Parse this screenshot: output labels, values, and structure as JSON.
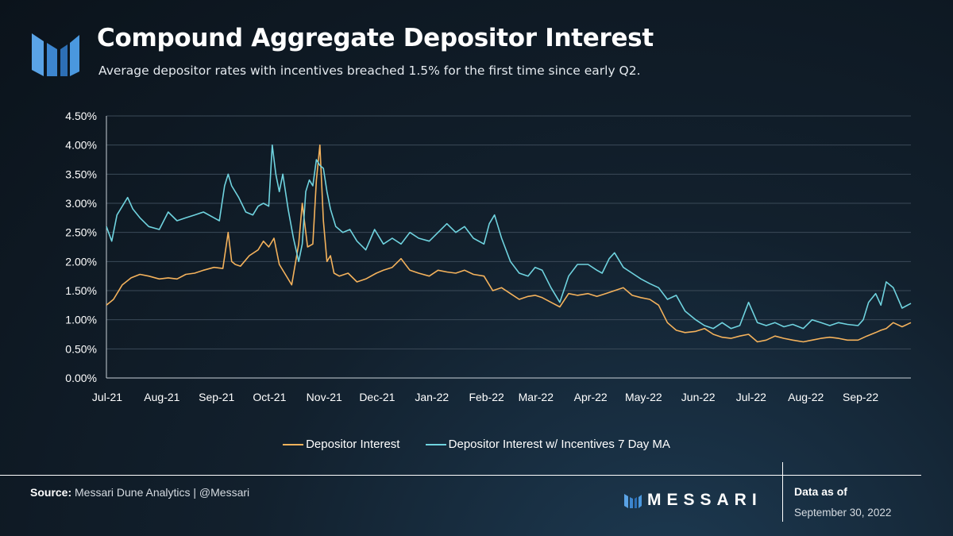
{
  "header": {
    "title": "Compound Aggregate Depositor Interest",
    "subtitle": "Average depositor rates with incentives breached 1.5% for the first time since early Q2."
  },
  "colors": {
    "series1": "#f4b25c",
    "series2": "#6fd3df",
    "grid": "#3b4a58",
    "accent": "#3d8fd6"
  },
  "chart_data": {
    "type": "line",
    "title": "Compound Aggregate Depositor Interest",
    "xlabel": "",
    "ylabel": "",
    "ylim": [
      0,
      4.5
    ],
    "y_ticks": [
      "0.00%",
      "0.50%",
      "1.00%",
      "1.50%",
      "2.00%",
      "2.50%",
      "3.00%",
      "3.50%",
      "4.00%",
      "4.50%"
    ],
    "x_ticks": [
      "Jul-21",
      "Aug-21",
      "Sep-21",
      "Oct-21",
      "Nov-21",
      "Dec-21",
      "Jan-22",
      "Feb-22",
      "Mar-22",
      "Apr-22",
      "May-22",
      "Jun-22",
      "Jul-22",
      "Aug-22",
      "Sep-22"
    ],
    "x_range": [
      "2021-07-01",
      "2022-09-30"
    ],
    "series": [
      {
        "name": "Depositor Interest",
        "color": "#f4b25c",
        "x": [
          "2021-07-01",
          "2021-07-05",
          "2021-07-10",
          "2021-07-15",
          "2021-07-20",
          "2021-07-25",
          "2021-07-31",
          "2021-08-05",
          "2021-08-10",
          "2021-08-15",
          "2021-08-20",
          "2021-08-25",
          "2021-08-31",
          "2021-09-05",
          "2021-09-08",
          "2021-09-10",
          "2021-09-12",
          "2021-09-15",
          "2021-09-20",
          "2021-09-25",
          "2021-09-28",
          "2021-10-01",
          "2021-10-04",
          "2021-10-07",
          "2021-10-10",
          "2021-10-14",
          "2021-10-18",
          "2021-10-20",
          "2021-10-23",
          "2021-10-26",
          "2021-10-28",
          "2021-10-30",
          "2021-11-01",
          "2021-11-03",
          "2021-11-05",
          "2021-11-07",
          "2021-11-10",
          "2021-11-15",
          "2021-11-20",
          "2021-11-25",
          "2021-12-01",
          "2021-12-05",
          "2021-12-10",
          "2021-12-15",
          "2021-12-20",
          "2021-12-25",
          "2021-12-31",
          "2022-01-05",
          "2022-01-10",
          "2022-01-15",
          "2022-01-20",
          "2022-01-25",
          "2022-01-31",
          "2022-02-01",
          "2022-02-05",
          "2022-02-10",
          "2022-02-15",
          "2022-02-20",
          "2022-02-25",
          "2022-03-01",
          "2022-03-05",
          "2022-03-10",
          "2022-03-15",
          "2022-03-20",
          "2022-03-25",
          "2022-03-31",
          "2022-04-05",
          "2022-04-10",
          "2022-04-15",
          "2022-04-20",
          "2022-04-25",
          "2022-04-30",
          "2022-05-05",
          "2022-05-10",
          "2022-05-15",
          "2022-05-20",
          "2022-05-25",
          "2022-05-31",
          "2022-06-05",
          "2022-06-10",
          "2022-06-15",
          "2022-06-20",
          "2022-06-25",
          "2022-06-30",
          "2022-07-05",
          "2022-07-10",
          "2022-07-15",
          "2022-07-20",
          "2022-07-25",
          "2022-07-31",
          "2022-08-05",
          "2022-08-10",
          "2022-08-15",
          "2022-08-20",
          "2022-08-25",
          "2022-08-31",
          "2022-09-05",
          "2022-09-10",
          "2022-09-13",
          "2022-09-16",
          "2022-09-20",
          "2022-09-25",
          "2022-09-30"
        ],
        "values": [
          1.25,
          1.35,
          1.6,
          1.72,
          1.78,
          1.75,
          1.7,
          1.72,
          1.7,
          1.78,
          1.8,
          1.85,
          1.9,
          1.88,
          2.5,
          2.0,
          1.95,
          1.92,
          2.1,
          2.2,
          2.35,
          2.25,
          2.4,
          1.95,
          1.8,
          1.6,
          2.3,
          3.0,
          2.25,
          2.3,
          3.4,
          4.0,
          2.7,
          2.0,
          2.1,
          1.8,
          1.75,
          1.8,
          1.65,
          1.7,
          1.8,
          1.85,
          1.9,
          2.05,
          1.85,
          1.8,
          1.75,
          1.85,
          1.82,
          1.8,
          1.85,
          1.78,
          1.75,
          1.7,
          1.5,
          1.55,
          1.45,
          1.35,
          1.4,
          1.42,
          1.38,
          1.3,
          1.22,
          1.45,
          1.42,
          1.45,
          1.4,
          1.45,
          1.5,
          1.55,
          1.42,
          1.38,
          1.35,
          1.25,
          0.95,
          0.82,
          0.78,
          0.8,
          0.85,
          0.75,
          0.7,
          0.68,
          0.72,
          0.75,
          0.62,
          0.65,
          0.72,
          0.68,
          0.65,
          0.62,
          0.65,
          0.68,
          0.7,
          0.68,
          0.65,
          0.65,
          0.72,
          0.78,
          0.82,
          0.85,
          0.95,
          0.88,
          0.95
        ]
      },
      {
        "name": "Depositor Interest w/ Incentives 7 Day MA",
        "color": "#6fd3df",
        "x": [
          "2021-07-01",
          "2021-07-04",
          "2021-07-07",
          "2021-07-10",
          "2021-07-13",
          "2021-07-16",
          "2021-07-20",
          "2021-07-25",
          "2021-07-31",
          "2021-08-05",
          "2021-08-10",
          "2021-08-15",
          "2021-08-20",
          "2021-08-25",
          "2021-08-31",
          "2021-09-03",
          "2021-09-06",
          "2021-09-08",
          "2021-09-10",
          "2021-09-14",
          "2021-09-18",
          "2021-09-22",
          "2021-09-25",
          "2021-09-28",
          "2021-10-01",
          "2021-10-03",
          "2021-10-05",
          "2021-10-07",
          "2021-10-09",
          "2021-10-12",
          "2021-10-15",
          "2021-10-18",
          "2021-10-20",
          "2021-10-22",
          "2021-10-24",
          "2021-10-26",
          "2021-10-28",
          "2021-10-30",
          "2021-11-01",
          "2021-11-03",
          "2021-11-05",
          "2021-11-08",
          "2021-11-12",
          "2021-11-16",
          "2021-11-20",
          "2021-11-25",
          "2021-11-30",
          "2021-12-05",
          "2021-12-10",
          "2021-12-15",
          "2021-12-20",
          "2021-12-25",
          "2021-12-31",
          "2022-01-05",
          "2022-01-10",
          "2022-01-15",
          "2022-01-20",
          "2022-01-25",
          "2022-01-31",
          "2022-02-03",
          "2022-02-06",
          "2022-02-10",
          "2022-02-15",
          "2022-02-20",
          "2022-02-25",
          "2022-03-01",
          "2022-03-05",
          "2022-03-10",
          "2022-03-15",
          "2022-03-20",
          "2022-03-25",
          "2022-03-31",
          "2022-04-05",
          "2022-04-08",
          "2022-04-12",
          "2022-04-15",
          "2022-04-20",
          "2022-04-25",
          "2022-04-30",
          "2022-05-05",
          "2022-05-10",
          "2022-05-15",
          "2022-05-20",
          "2022-05-25",
          "2022-05-31",
          "2022-06-05",
          "2022-06-10",
          "2022-06-15",
          "2022-06-20",
          "2022-06-25",
          "2022-06-30",
          "2022-07-05",
          "2022-07-10",
          "2022-07-15",
          "2022-07-20",
          "2022-07-25",
          "2022-07-31",
          "2022-08-05",
          "2022-08-10",
          "2022-08-15",
          "2022-08-20",
          "2022-08-25",
          "2022-08-31",
          "2022-09-03",
          "2022-09-06",
          "2022-09-10",
          "2022-09-13",
          "2022-09-16",
          "2022-09-20",
          "2022-09-25",
          "2022-09-30"
        ],
        "values": [
          2.6,
          2.35,
          2.8,
          2.95,
          3.1,
          2.9,
          2.75,
          2.6,
          2.55,
          2.85,
          2.7,
          2.75,
          2.8,
          2.85,
          2.75,
          2.7,
          3.3,
          3.5,
          3.3,
          3.1,
          2.85,
          2.8,
          2.95,
          3.0,
          2.95,
          4.0,
          3.5,
          3.2,
          3.5,
          2.9,
          2.4,
          2.0,
          2.3,
          3.2,
          3.4,
          3.3,
          3.75,
          3.65,
          3.6,
          3.2,
          2.9,
          2.6,
          2.5,
          2.55,
          2.35,
          2.2,
          2.55,
          2.3,
          2.4,
          2.3,
          2.5,
          2.4,
          2.35,
          2.5,
          2.65,
          2.5,
          2.6,
          2.4,
          2.3,
          2.65,
          2.8,
          2.4,
          2.0,
          1.8,
          1.75,
          1.9,
          1.85,
          1.55,
          1.3,
          1.75,
          1.95,
          1.95,
          1.85,
          1.8,
          2.05,
          2.15,
          1.9,
          1.8,
          1.7,
          1.62,
          1.55,
          1.35,
          1.42,
          1.15,
          1.0,
          0.9,
          0.85,
          0.95,
          0.85,
          0.9,
          1.3,
          0.95,
          0.9,
          0.95,
          0.88,
          0.92,
          0.85,
          1.0,
          0.95,
          0.9,
          0.95,
          0.92,
          0.9,
          1.0,
          1.3,
          1.45,
          1.25,
          1.65,
          1.55,
          1.2,
          1.28
        ]
      }
    ]
  },
  "footer": {
    "source_label": "Source:",
    "source_text": " Messari Dune Analytics | @Messari",
    "brand": "MESSARI",
    "as_of_label": "Data as of",
    "as_of_date": "September 30, 2022"
  }
}
